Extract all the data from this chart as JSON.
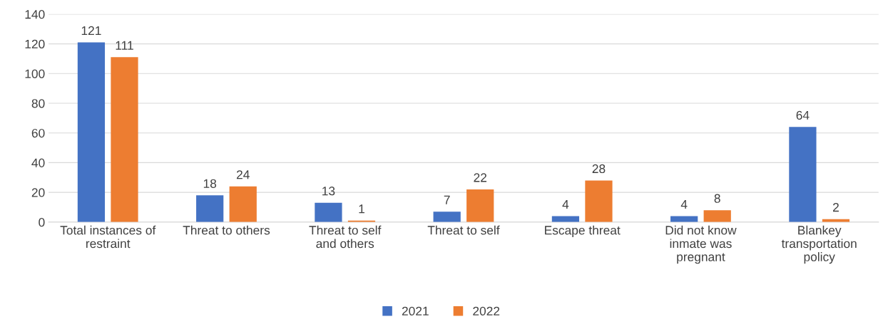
{
  "chart_data": {
    "type": "bar",
    "categories": [
      "Total instances of\nrestraint",
      "Threat to others",
      "Threat to self\nand others",
      "Threat to self",
      "Escape threat",
      "Did not know\ninmate was\npregnant",
      "Blankey\ntransportation\npolicy"
    ],
    "series": [
      {
        "name": "2021",
        "color": "#4472c4",
        "values": [
          121,
          18,
          13,
          7,
          4,
          4,
          64
        ]
      },
      {
        "name": "2022",
        "color": "#ed7d31",
        "values": [
          111,
          24,
          1,
          22,
          28,
          8,
          2
        ]
      }
    ],
    "ylim": [
      0,
      140
    ],
    "yticks": [
      0,
      20,
      40,
      60,
      80,
      100,
      120,
      140
    ],
    "grid": "y",
    "legend": "bottom",
    "data_labels": true
  }
}
